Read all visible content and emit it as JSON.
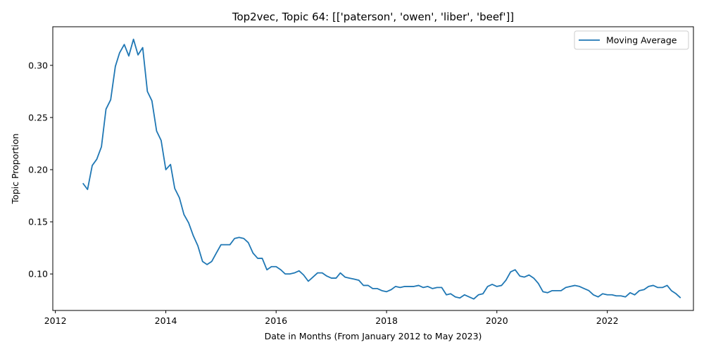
{
  "chart_data": {
    "type": "line",
    "title": "Top2vec, Topic 64: [['paterson', 'owen', 'liber', 'beef']]",
    "xlabel": "Date in Months (From January 2012 to May 2023)",
    "ylabel": "Topic Proportion",
    "xlim": [
      "2011-12-15",
      "2023-07-25"
    ],
    "ylim": [
      0.065,
      0.337
    ],
    "x_ticks": [
      "2012",
      "2014",
      "2016",
      "2018",
      "2020",
      "2022"
    ],
    "y_ticks": [
      "0.10",
      "0.15",
      "0.20",
      "0.25",
      "0.30"
    ],
    "legend": {
      "position": "upper right",
      "entries": [
        "Moving Average"
      ]
    },
    "grid": false,
    "series": [
      {
        "name": "Moving Average",
        "color": "#1f77b4",
        "x": [
          "2012-07",
          "2012-08",
          "2012-09",
          "2012-10",
          "2012-11",
          "2012-12",
          "2013-01",
          "2013-02",
          "2013-03",
          "2013-04",
          "2013-05",
          "2013-06",
          "2013-07",
          "2013-08",
          "2013-09",
          "2013-10",
          "2013-11",
          "2013-12",
          "2014-01",
          "2014-02",
          "2014-03",
          "2014-04",
          "2014-05",
          "2014-06",
          "2014-07",
          "2014-08",
          "2014-09",
          "2014-10",
          "2014-11",
          "2014-12",
          "2015-01",
          "2015-02",
          "2015-03",
          "2015-04",
          "2015-05",
          "2015-06",
          "2015-07",
          "2015-08",
          "2015-09",
          "2015-10",
          "2015-11",
          "2015-12",
          "2016-01",
          "2016-02",
          "2016-03",
          "2016-04",
          "2016-05",
          "2016-06",
          "2016-07",
          "2016-08",
          "2016-09",
          "2016-10",
          "2016-11",
          "2016-12",
          "2017-01",
          "2017-02",
          "2017-03",
          "2017-04",
          "2017-05",
          "2017-06",
          "2017-07",
          "2017-08",
          "2017-09",
          "2017-10",
          "2017-11",
          "2017-12",
          "2018-01",
          "2018-02",
          "2018-03",
          "2018-04",
          "2018-05",
          "2018-06",
          "2018-07",
          "2018-08",
          "2018-09",
          "2018-10",
          "2018-11",
          "2018-12",
          "2019-01",
          "2019-02",
          "2019-03",
          "2019-04",
          "2019-05",
          "2019-06",
          "2019-07",
          "2019-08",
          "2019-09",
          "2019-10",
          "2019-11",
          "2019-12",
          "2020-01",
          "2020-02",
          "2020-03",
          "2020-04",
          "2020-05",
          "2020-06",
          "2020-07",
          "2020-08",
          "2020-09",
          "2020-10",
          "2020-11",
          "2020-12",
          "2021-01",
          "2021-02",
          "2021-03",
          "2021-04",
          "2021-05",
          "2021-06",
          "2021-07",
          "2021-08",
          "2021-09",
          "2021-10",
          "2021-11",
          "2021-12",
          "2022-01",
          "2022-02",
          "2022-03",
          "2022-04",
          "2022-05",
          "2022-06",
          "2022-07",
          "2022-08",
          "2022-09",
          "2022-10",
          "2022-11",
          "2022-12",
          "2023-01",
          "2023-02",
          "2023-03",
          "2023-04",
          "2023-05"
        ],
        "values": [
          0.187,
          0.181,
          0.204,
          0.21,
          0.222,
          0.258,
          0.267,
          0.299,
          0.312,
          0.32,
          0.309,
          0.325,
          0.31,
          0.317,
          0.275,
          0.266,
          0.237,
          0.228,
          0.2,
          0.205,
          0.182,
          0.173,
          0.157,
          0.149,
          0.137,
          0.127,
          0.112,
          0.109,
          0.112,
          0.12,
          0.128,
          0.128,
          0.128,
          0.134,
          0.135,
          0.134,
          0.13,
          0.12,
          0.115,
          0.115,
          0.104,
          0.107,
          0.107,
          0.104,
          0.1,
          0.1,
          0.101,
          0.103,
          0.099,
          0.093,
          0.097,
          0.101,
          0.101,
          0.098,
          0.096,
          0.096,
          0.101,
          0.097,
          0.096,
          0.095,
          0.094,
          0.089,
          0.089,
          0.086,
          0.086,
          0.084,
          0.083,
          0.085,
          0.088,
          0.087,
          0.088,
          0.088,
          0.088,
          0.089,
          0.087,
          0.088,
          0.086,
          0.087,
          0.087,
          0.08,
          0.081,
          0.078,
          0.077,
          0.08,
          0.078,
          0.076,
          0.08,
          0.081,
          0.088,
          0.09,
          0.088,
          0.089,
          0.094,
          0.102,
          0.104,
          0.098,
          0.097,
          0.099,
          0.096,
          0.091,
          0.083,
          0.082,
          0.084,
          0.084,
          0.084,
          0.087,
          0.088,
          0.089,
          0.088,
          0.086,
          0.084,
          0.08,
          0.078,
          0.081,
          0.08,
          0.08,
          0.079,
          0.079,
          0.078,
          0.082,
          0.08,
          0.084,
          0.085,
          0.088,
          0.089,
          0.087,
          0.087,
          0.089,
          0.084,
          0.081,
          0.077
        ]
      }
    ]
  }
}
